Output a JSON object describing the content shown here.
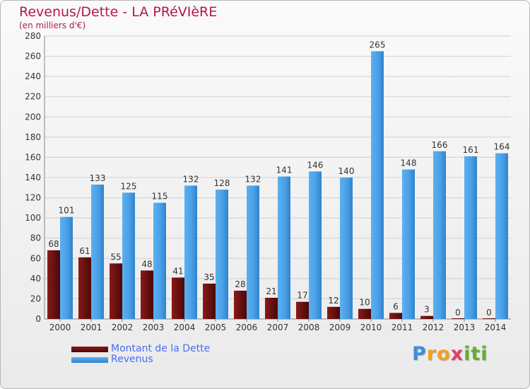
{
  "chart_data": {
    "type": "bar",
    "title": "Revenus/Dette - LA PRéVIèRE",
    "subtitle": "(en milliers d'€)",
    "categories": [
      "2000",
      "2001",
      "2002",
      "2003",
      "2004",
      "2005",
      "2006",
      "2007",
      "2008",
      "2009",
      "2010",
      "2011",
      "2012",
      "2013",
      "2014"
    ],
    "series": [
      {
        "name": "Montant de la Dette",
        "color": "#7a1414",
        "values": [
          68,
          61,
          55,
          48,
          41,
          35,
          28,
          21,
          17,
          12,
          10,
          6,
          3,
          0,
          0
        ]
      },
      {
        "name": "Revenus",
        "color": "#4da3e8",
        "values": [
          101,
          133,
          125,
          115,
          132,
          128,
          132,
          141,
          146,
          140,
          265,
          148,
          166,
          161,
          164
        ]
      }
    ],
    "ylim": [
      0,
      280
    ],
    "yticks": [
      0,
      20,
      40,
      60,
      80,
      100,
      120,
      140,
      160,
      180,
      200,
      220,
      240,
      260,
      280
    ],
    "grid": true,
    "legend": "bottom-left"
  },
  "logo": {
    "letters": [
      "P",
      "r",
      "o",
      "x",
      "i",
      "t",
      "i"
    ],
    "colors": [
      "#3a8ed8",
      "#f0a020",
      "#f0a020",
      "#e83a6a",
      "#60b030",
      "#60b030",
      "#60b030"
    ]
  }
}
